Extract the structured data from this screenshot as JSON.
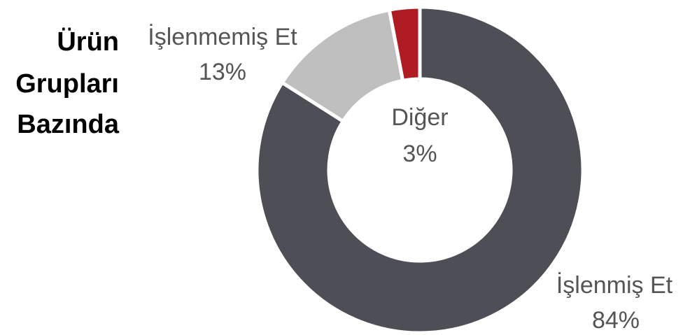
{
  "chart_data": {
    "type": "donut",
    "title": [
      "Ürün",
      "Grupları",
      "Bazında"
    ],
    "categories": [
      "İşlenmiş Et",
      "İşlenmemiş Et",
      "Diğer"
    ],
    "values": [
      84,
      13,
      3
    ],
    "value_labels": [
      "84%",
      "13%",
      "3%"
    ],
    "colors": [
      "#4d4e56",
      "#bfbfbf",
      "#b01c24"
    ]
  }
}
